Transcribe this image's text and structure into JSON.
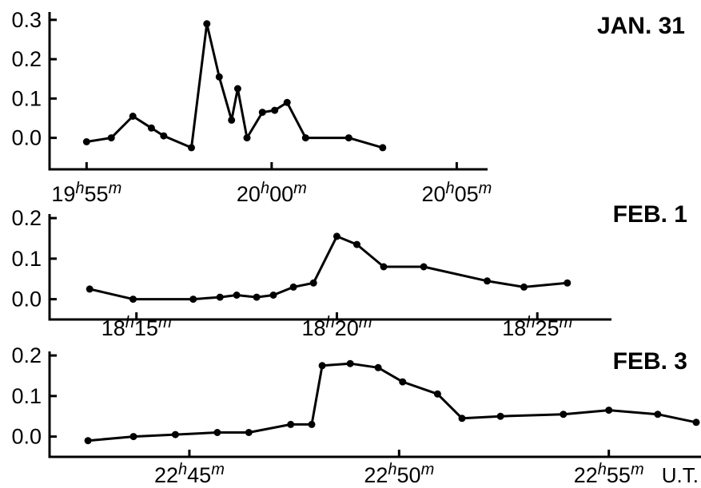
{
  "chart_data": [
    {
      "type": "line",
      "title": "JAN. 31",
      "xlabel": "",
      "ylabel": "",
      "y_ticks": [
        "0.0",
        "0.1",
        "0.2",
        "0.3"
      ],
      "ylim": [
        -0.08,
        0.32
      ],
      "xlim": [
        "19:54:00",
        "20:05:50"
      ],
      "x_ticks": [
        "19:55",
        "20:00",
        "20:05"
      ],
      "x_tick_labels": [
        {
          "h": "19",
          "m": "55"
        },
        {
          "h": "20",
          "m": "00"
        },
        {
          "h": "20",
          "m": "05"
        }
      ],
      "x": [
        "19:55:00",
        "19:55:40",
        "19:56:15",
        "19:56:45",
        "19:57:05",
        "19:57:50",
        "19:58:15",
        "19:58:35",
        "19:58:55",
        "19:59:05",
        "19:59:20",
        "19:59:45",
        "20:00:05",
        "20:00:25",
        "20:00:55",
        "20:02:05",
        "20:03:00"
      ],
      "y": [
        -0.01,
        0.0,
        0.055,
        0.025,
        0.005,
        -0.025,
        0.29,
        0.155,
        0.045,
        0.125,
        0.0,
        0.065,
        0.07,
        0.09,
        0.0,
        0.0,
        -0.025
      ],
      "grid": false
    },
    {
      "type": "line",
      "title": "FEB. 1",
      "xlabel": "",
      "ylabel": "",
      "y_ticks": [
        "0.0",
        "0.1",
        "0.2"
      ],
      "ylim": [
        -0.05,
        0.21
      ],
      "xlim": [
        "18:12:50",
        "18:26:45"
      ],
      "x_ticks": [
        "18:15",
        "18:20",
        "18:25"
      ],
      "x_tick_labels": [
        {
          "h": "18",
          "m": "15"
        },
        {
          "h": "18",
          "m": "20"
        },
        {
          "h": "18",
          "m": "25"
        }
      ],
      "x": [
        "18:13:50",
        "18:14:55",
        "18:16:25",
        "18:17:05",
        "18:17:30",
        "18:18:00",
        "18:18:25",
        "18:18:55",
        "18:19:25",
        "18:20:00",
        "18:20:30",
        "18:21:10",
        "18:22:10",
        "18:23:45",
        "18:24:40",
        "18:25:45"
      ],
      "y": [
        0.025,
        0.0,
        0.0,
        0.005,
        0.01,
        0.005,
        0.01,
        0.03,
        0.04,
        0.155,
        0.135,
        0.08,
        0.08,
        0.045,
        0.03,
        0.04
      ],
      "grid": false
    },
    {
      "type": "line",
      "title": "FEB. 3",
      "xlabel": "U.T.",
      "ylabel": "",
      "y_ticks": [
        "0.0",
        "0.1",
        "0.2"
      ],
      "ylim": [
        -0.05,
        0.21
      ],
      "xlim": [
        "22:41:40",
        "22:57:05"
      ],
      "x_ticks": [
        "22:45",
        "22:50",
        "22:55"
      ],
      "x_tick_labels": [
        {
          "h": "22",
          "m": "45"
        },
        {
          "h": "22",
          "m": "50"
        },
        {
          "h": "22",
          "m": "55"
        }
      ],
      "x": [
        "22:42:35",
        "22:43:40",
        "22:44:40",
        "22:45:40",
        "22:46:25",
        "22:47:25",
        "22:47:55",
        "22:48:10",
        "22:48:50",
        "22:49:30",
        "22:50:05",
        "22:50:55",
        "22:51:30",
        "22:52:25",
        "22:53:55",
        "22:55:00",
        "22:56:10",
        "22:57:05"
      ],
      "y": [
        -0.01,
        0.0,
        0.005,
        0.01,
        0.01,
        0.03,
        0.03,
        0.175,
        0.18,
        0.17,
        0.135,
        0.105,
        0.045,
        0.05,
        0.055,
        0.065,
        0.055,
        0.035
      ],
      "grid": false
    }
  ]
}
